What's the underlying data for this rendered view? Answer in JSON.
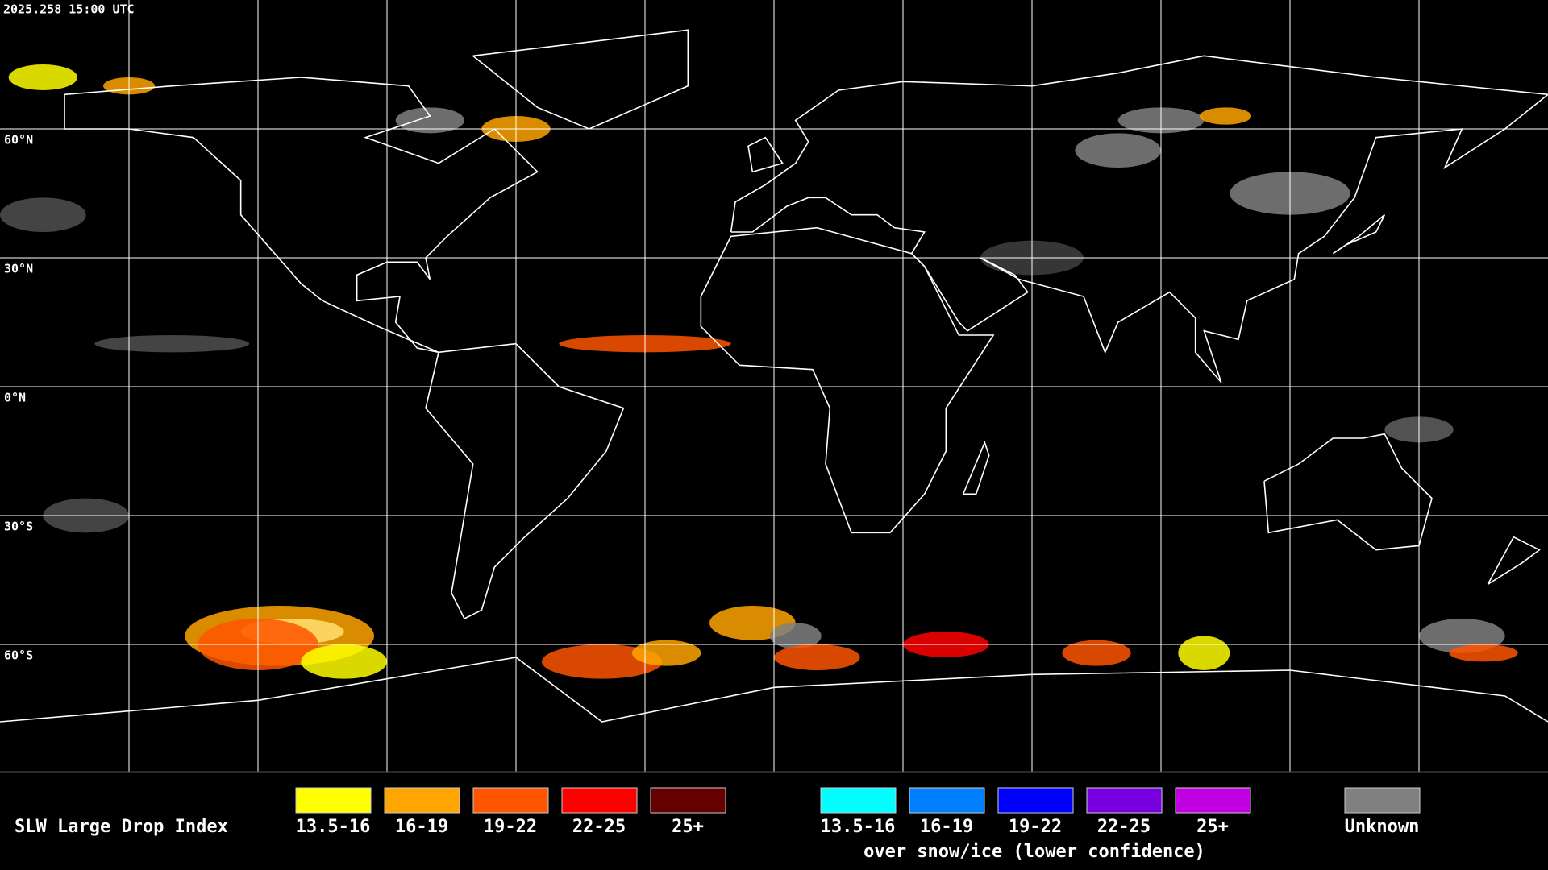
{
  "timestamp": "2025.258 15:00 UTC",
  "latitude_labels": [
    "60°N",
    "30°N",
    "0°N",
    "30°S",
    "60°S"
  ],
  "legend": {
    "title": "SLW Large Drop Index",
    "items": [
      {
        "label": "13.5-16",
        "color": "#ffff00"
      },
      {
        "label": "16-19",
        "color": "#ffa500"
      },
      {
        "label": "19-22",
        "color": "#ff5500"
      },
      {
        "label": "22-25",
        "color": "#ff0000"
      },
      {
        "label": "25+",
        "color": "#640000"
      }
    ],
    "snow_items": [
      {
        "label": "13.5-16",
        "color": "#00ffff"
      },
      {
        "label": "16-19",
        "color": "#0080ff"
      },
      {
        "label": "19-22",
        "color": "#0000ff"
      },
      {
        "label": "22-25",
        "color": "#7800e0"
      },
      {
        "label": "25+",
        "color": "#c000e0"
      }
    ],
    "snow_caption": "over snow/ice (lower confidence)",
    "unknown": {
      "label": "Unknown",
      "color": "#808080"
    }
  }
}
